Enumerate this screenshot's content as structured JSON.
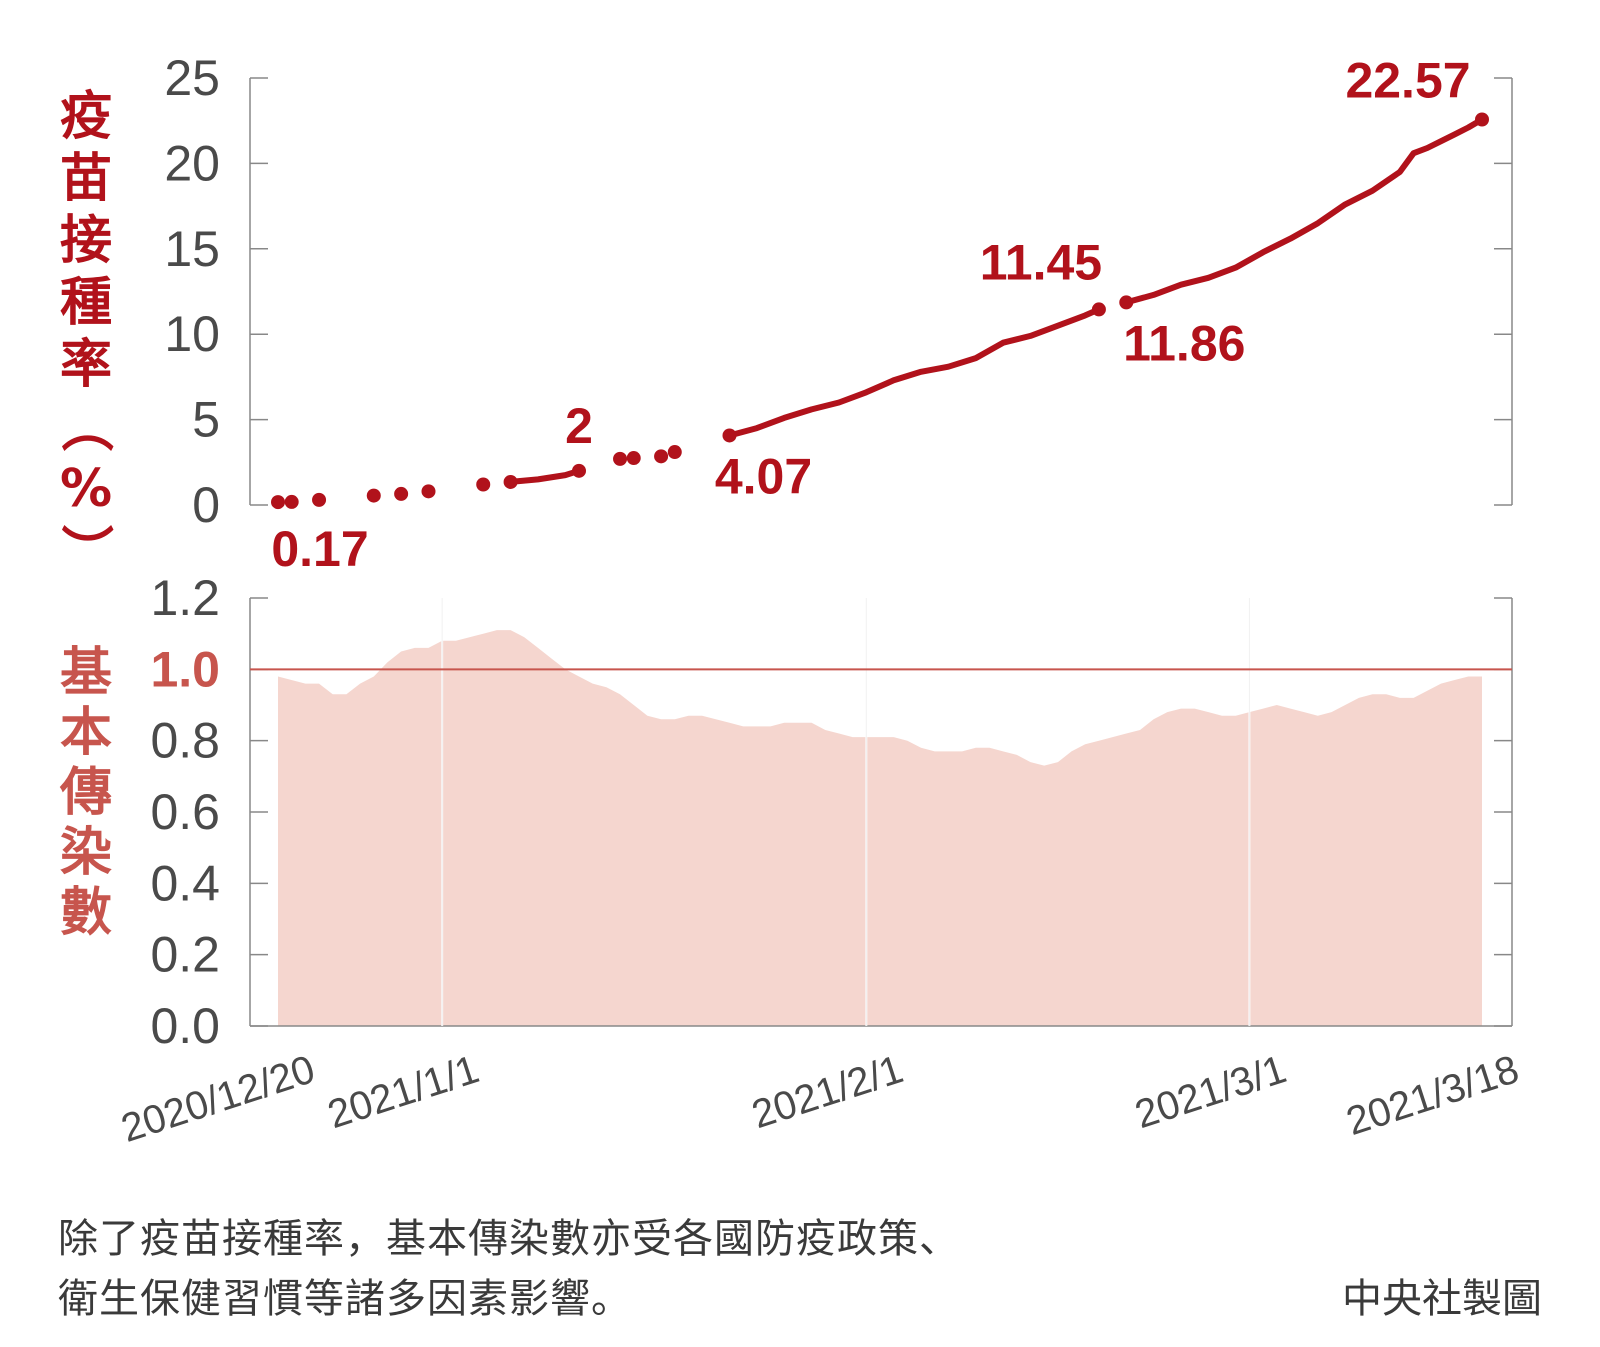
{
  "colors": {
    "accent": "#b1121b",
    "fill": "#f5d6cf",
    "threshold": "#c7554d",
    "axis": "#888888",
    "text": "#4a4a4a"
  },
  "chart_data": [
    {
      "type": "line",
      "ylabel": "疫苗接種率（%）",
      "ylim": [
        0,
        25
      ],
      "yticks": [
        "0",
        "5",
        "10",
        "15",
        "20",
        "25"
      ],
      "xlim": [
        "2020-12-20",
        "2021-03-18"
      ],
      "segments": [
        [
          [
            "2020-12-20",
            0.17
          ]
        ],
        [
          [
            "2020-12-21",
            0.18
          ]
        ],
        [
          [
            "2020-12-23",
            0.3
          ]
        ],
        [
          [
            "2020-12-27",
            0.55
          ]
        ],
        [
          [
            "2020-12-29",
            0.65
          ]
        ],
        [
          [
            "2020-12-31",
            0.8
          ]
        ],
        [
          [
            "2021-01-04",
            1.2
          ]
        ],
        [
          [
            "2021-01-06",
            1.35
          ],
          [
            "2021-01-08",
            1.5
          ],
          [
            "2021-01-10",
            1.75
          ],
          [
            "2021-01-11",
            2.0
          ]
        ],
        [
          [
            "2021-01-14",
            2.7
          ]
        ],
        [
          [
            "2021-01-15",
            2.75
          ]
        ],
        [
          [
            "2021-01-17",
            2.85
          ]
        ],
        [
          [
            "2021-01-18",
            3.1
          ]
        ],
        [
          [
            "2021-01-22",
            4.07
          ],
          [
            "2021-01-24",
            4.5
          ],
          [
            "2021-01-26",
            5.1
          ],
          [
            "2021-01-28",
            5.6
          ],
          [
            "2021-01-30",
            6.0
          ],
          [
            "2021-02-01",
            6.6
          ],
          [
            "2021-02-03",
            7.3
          ],
          [
            "2021-02-05",
            7.8
          ],
          [
            "2021-02-07",
            8.1
          ],
          [
            "2021-02-09",
            8.6
          ],
          [
            "2021-02-11",
            9.5
          ],
          [
            "2021-02-13",
            9.9
          ],
          [
            "2021-02-15",
            10.5
          ],
          [
            "2021-02-17",
            11.1
          ],
          [
            "2021-02-18",
            11.45
          ]
        ],
        [
          [
            "2021-02-20",
            11.86
          ],
          [
            "2021-02-22",
            12.3
          ],
          [
            "2021-02-24",
            12.9
          ],
          [
            "2021-02-26",
            13.3
          ],
          [
            "2021-02-28",
            13.9
          ],
          [
            "2021-03-02",
            14.8
          ],
          [
            "2021-03-04",
            15.6
          ],
          [
            "2021-03-06",
            16.5
          ],
          [
            "2021-03-08",
            17.6
          ],
          [
            "2021-03-10",
            18.4
          ],
          [
            "2021-03-12",
            19.5
          ],
          [
            "2021-03-13",
            20.6
          ],
          [
            "2021-03-14",
            20.9
          ],
          [
            "2021-03-15",
            21.3
          ],
          [
            "2021-03-16",
            21.7
          ],
          [
            "2021-03-17",
            22.1
          ],
          [
            "2021-03-18",
            22.57
          ]
        ]
      ],
      "annotations": [
        {
          "text": "0.17",
          "x": "2020-12-20",
          "y": 0.17,
          "pos": "below"
        },
        {
          "text": "2",
          "x": "2021-01-11",
          "y": 2.0,
          "pos": "above"
        },
        {
          "text": "4.07",
          "x": "2021-01-22",
          "y": 4.07,
          "pos": "below"
        },
        {
          "text": "11.45",
          "x": "2021-02-18",
          "y": 11.45,
          "pos": "above"
        },
        {
          "text": "11.86",
          "x": "2021-02-20",
          "y": 11.86,
          "pos": "below"
        },
        {
          "text": "22.57",
          "x": "2021-03-18",
          "y": 22.57,
          "pos": "above"
        }
      ],
      "grid": false
    },
    {
      "type": "area",
      "ylabel": "基本傳染數",
      "ylim": [
        0,
        1.2
      ],
      "yticks": [
        "0.0",
        "0.2",
        "0.4",
        "0.6",
        "0.8",
        "1.0",
        "1.2"
      ],
      "reference_line": 1.0,
      "xlim": [
        "2020-12-20",
        "2021-03-18"
      ],
      "xticks": [
        "2020/12/20",
        "2021/1/1",
        "2021/2/1",
        "2021/3/1",
        "2021/3/18"
      ],
      "xtick_dates": [
        "2020-12-20",
        "2021-01-01",
        "2021-02-01",
        "2021-03-01",
        "2021-03-18"
      ],
      "x": [
        "2020-12-20",
        "2020-12-22",
        "2020-12-23",
        "2020-12-24",
        "2020-12-25",
        "2020-12-26",
        "2020-12-27",
        "2020-12-28",
        "2020-12-29",
        "2020-12-30",
        "2020-12-31",
        "2021-01-01",
        "2021-01-02",
        "2021-01-03",
        "2021-01-04",
        "2021-01-05",
        "2021-01-06",
        "2021-01-07",
        "2021-01-08",
        "2021-01-09",
        "2021-01-10",
        "2021-01-11",
        "2021-01-12",
        "2021-01-13",
        "2021-01-14",
        "2021-01-15",
        "2021-01-16",
        "2021-01-17",
        "2021-01-18",
        "2021-01-19",
        "2021-01-20",
        "2021-01-21",
        "2021-01-22",
        "2021-01-23",
        "2021-01-24",
        "2021-01-25",
        "2021-01-26",
        "2021-01-27",
        "2021-01-28",
        "2021-01-29",
        "2021-01-30",
        "2021-01-31",
        "2021-02-01",
        "2021-02-02",
        "2021-02-03",
        "2021-02-04",
        "2021-02-05",
        "2021-02-06",
        "2021-02-07",
        "2021-02-08",
        "2021-02-09",
        "2021-02-10",
        "2021-02-11",
        "2021-02-12",
        "2021-02-13",
        "2021-02-14",
        "2021-02-15",
        "2021-02-16",
        "2021-02-17",
        "2021-02-18",
        "2021-02-19",
        "2021-02-20",
        "2021-02-21",
        "2021-02-22",
        "2021-02-23",
        "2021-02-24",
        "2021-02-25",
        "2021-02-26",
        "2021-02-27",
        "2021-02-28",
        "2021-03-01",
        "2021-03-02",
        "2021-03-03",
        "2021-03-04",
        "2021-03-05",
        "2021-03-06",
        "2021-03-07",
        "2021-03-08",
        "2021-03-09",
        "2021-03-10",
        "2021-03-11",
        "2021-03-12",
        "2021-03-13",
        "2021-03-14",
        "2021-03-15",
        "2021-03-16",
        "2021-03-17",
        "2021-03-18"
      ],
      "values": [
        0.98,
        0.96,
        0.96,
        0.93,
        0.93,
        0.96,
        0.98,
        1.02,
        1.05,
        1.06,
        1.06,
        1.08,
        1.08,
        1.09,
        1.1,
        1.11,
        1.11,
        1.09,
        1.06,
        1.03,
        1.0,
        0.98,
        0.96,
        0.95,
        0.93,
        0.9,
        0.87,
        0.86,
        0.86,
        0.87,
        0.87,
        0.86,
        0.85,
        0.84,
        0.84,
        0.84,
        0.85,
        0.85,
        0.85,
        0.83,
        0.82,
        0.81,
        0.81,
        0.81,
        0.81,
        0.8,
        0.78,
        0.77,
        0.77,
        0.77,
        0.78,
        0.78,
        0.77,
        0.76,
        0.74,
        0.73,
        0.74,
        0.77,
        0.79,
        0.8,
        0.81,
        0.82,
        0.83,
        0.86,
        0.88,
        0.89,
        0.89,
        0.88,
        0.87,
        0.87,
        0.88,
        0.89,
        0.9,
        0.89,
        0.88,
        0.87,
        0.88,
        0.9,
        0.92,
        0.93,
        0.93,
        0.92,
        0.92,
        0.94,
        0.96,
        0.97,
        0.98,
        0.98
      ]
    }
  ],
  "note": {
    "line1": "除了疫苗接種率，基本傳染數亦受各國防疫政策、",
    "line2": "衛生保健習慣等諸多因素影響。",
    "credit": "中央社製圖"
  }
}
